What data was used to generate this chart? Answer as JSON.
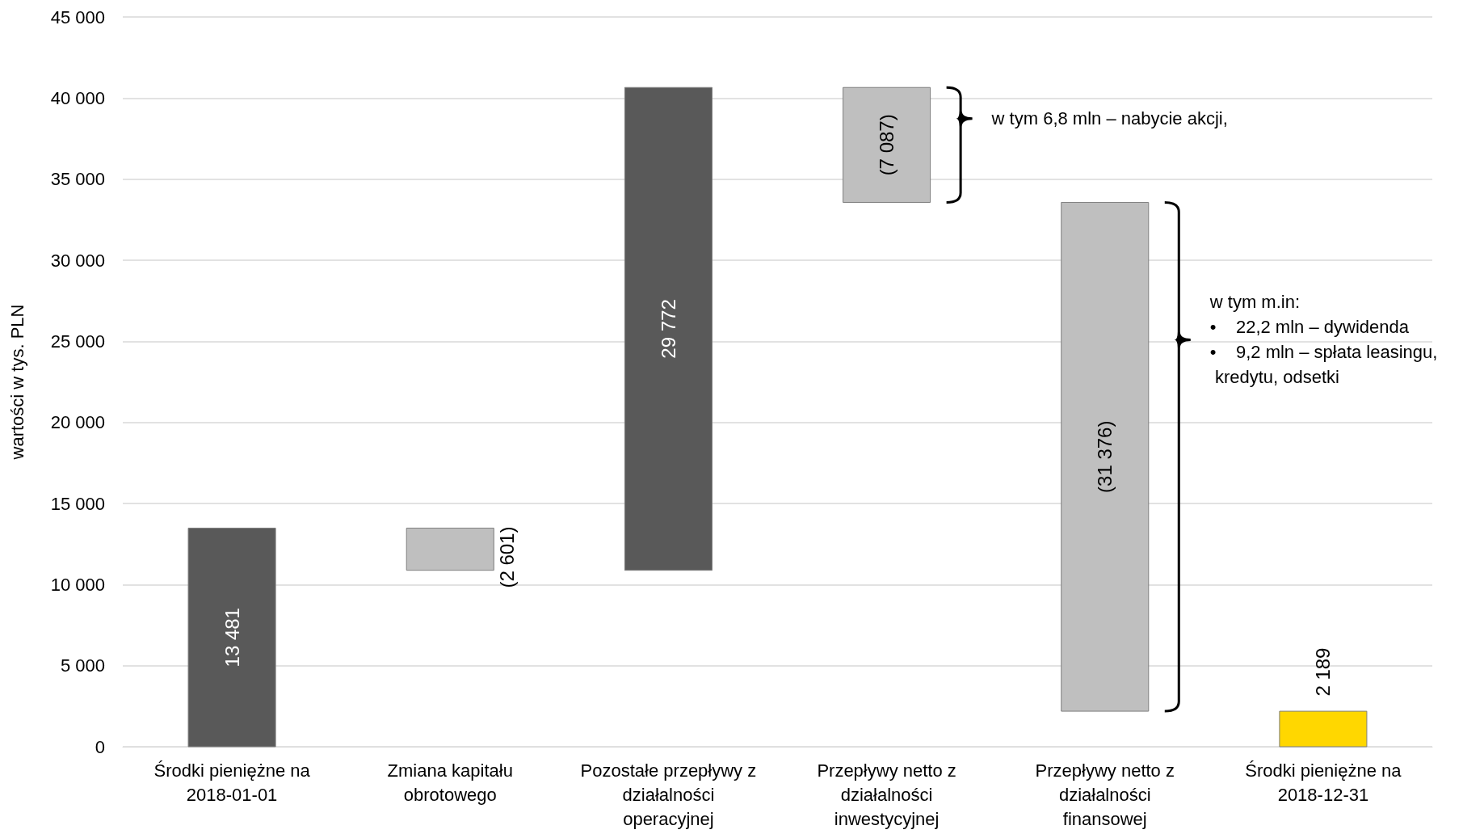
{
  "chart_data": {
    "type": "bar",
    "ylabel": "wartości w tys. PLN",
    "categories": [
      "Środki pieniężne na\n2018-01-01",
      "Zmiana kapitału\nobrotowego",
      "Pozostałe przepływy z\ndziałalności\noperacyjnej",
      "Przepływy netto z\ndziałalności\ninwestycyjnej",
      "Przepływy netto z\ndziałalności\nfinansowej",
      "Środki pieniężne na\n2018-12-31"
    ],
    "values": [
      13481,
      -2601,
      29772,
      -7087,
      -31376,
      2189
    ],
    "base": [
      0,
      13481,
      10880,
      40652,
      33565,
      0
    ],
    "colors": [
      "#595959",
      "#bfbfbf",
      "#595959",
      "#bfbfbf",
      "#bfbfbf",
      "#ffd700"
    ],
    "value_labels": [
      "13 481",
      "(2 601)",
      "29 772",
      "(7 087)",
      "(31 376)",
      "2 189"
    ],
    "ylim": [
      0,
      45000
    ],
    "yticks": [
      0,
      5000,
      10000,
      15000,
      20000,
      25000,
      30000,
      35000,
      40000,
      45000
    ],
    "grid": "y",
    "annotations": [
      "w tym 6,8 mln – nabycie akcji,",
      "w tym m.in:\n•    22,2 mln – dywidenda\n•    9,2 mln – spłata leasingu,\n kredytu, odsetki"
    ]
  }
}
